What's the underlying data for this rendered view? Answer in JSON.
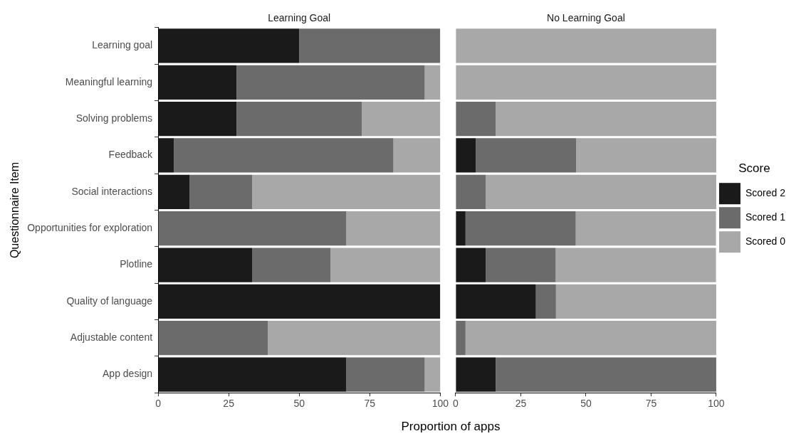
{
  "chart_data": [
    {
      "type": "bar",
      "orientation": "horizontal",
      "stacked": true,
      "title": "Learning Goal",
      "ylabel": "Questionnaire Item",
      "xlabel": "Proportion of apps",
      "grid": false,
      "legend": false,
      "xlim": [
        0,
        100
      ],
      "xticks": [
        0,
        25,
        50,
        75,
        100
      ],
      "categories": [
        "Learning goal",
        "Meaningful learning",
        "Solving problems",
        "Feedback",
        "Social interactions",
        "Opportunities for exploration",
        "Plotline",
        "Quality of language",
        "Adjustable content",
        "App design"
      ],
      "series": [
        {
          "color": "#1a1a1a",
          "values": [
            50,
            27.8,
            27.8,
            5.6,
            11.1,
            0,
            33.3,
            100,
            0,
            66.7
          ]
        },
        {
          "color": "#6b6b6b",
          "values": [
            50,
            66.7,
            44.4,
            77.8,
            22.2,
            66.7,
            27.8,
            0,
            38.9,
            27.8
          ]
        },
        {
          "color": "#a8a8a8",
          "values": [
            0,
            5.6,
            27.8,
            16.7,
            66.7,
            33.3,
            38.9,
            0,
            61.1,
            5.6
          ]
        }
      ]
    },
    {
      "type": "bar",
      "orientation": "horizontal",
      "stacked": true,
      "title": "No Learning Goal",
      "legend_title": "Score",
      "grid": false,
      "legend": "right",
      "tick_labels": "x",
      "xlim": [
        0,
        100
      ],
      "xticks": [
        0,
        25,
        50,
        75,
        100
      ],
      "categories": [
        null,
        null,
        null,
        null,
        null,
        null,
        null,
        null,
        null,
        null
      ],
      "series": [
        {
          "name": "Scored 2",
          "color": "#1a1a1a",
          "values": [
            0,
            0,
            0,
            7.7,
            0,
            3.8,
            11.5,
            30.8,
            0,
            15.4
          ]
        },
        {
          "name": "Scored 1",
          "color": "#6b6b6b",
          "values": [
            0,
            0,
            15.4,
            38.5,
            11.5,
            42.3,
            26.9,
            7.7,
            3.8,
            84.6
          ]
        },
        {
          "name": "Scored 0",
          "color": "#a8a8a8",
          "values": [
            100,
            100,
            84.6,
            53.8,
            88.5,
            53.8,
            61.5,
            61.5,
            96.2,
            0
          ]
        }
      ]
    }
  ]
}
